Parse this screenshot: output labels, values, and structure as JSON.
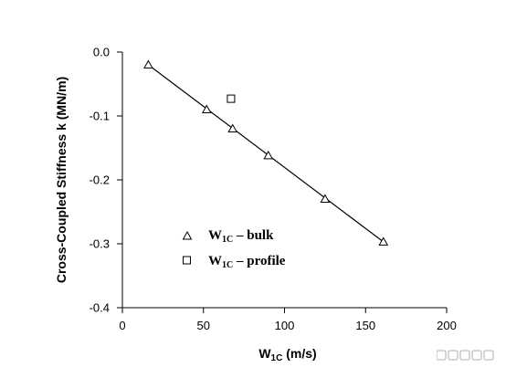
{
  "chart_data": {
    "type": "scatter",
    "xlabel_main": "W",
    "xlabel_sub": "1C",
    "xlabel_unit": " (m/s)",
    "ylabel": "Cross-Coupled Stiffness k  (MN/m)",
    "xlim": [
      0,
      200
    ],
    "ylim": [
      -0.4,
      0.0
    ],
    "x_ticks": [
      "0",
      "50",
      "100",
      "150",
      "200"
    ],
    "y_ticks": [
      "0.0",
      "-0.1",
      "-0.2",
      "-0.3",
      "-0.4"
    ],
    "x_tick_values": [
      0,
      50,
      100,
      150,
      200
    ],
    "y_tick_values": [
      0.0,
      -0.1,
      -0.2,
      -0.3,
      -0.4
    ],
    "grid": false,
    "legend_position": "center-left",
    "series": [
      {
        "name_main": "W",
        "name_sub": "1C",
        "name_rest": " – bulk",
        "marker": "triangle",
        "x": [
          16,
          52,
          68,
          90,
          125,
          161
        ],
        "y": [
          -0.02,
          -0.09,
          -0.12,
          -0.162,
          -0.23,
          -0.297
        ],
        "fit_line": {
          "x": [
            16,
            161
          ],
          "y": [
            -0.02,
            -0.297
          ]
        }
      },
      {
        "name_main": "W",
        "name_sub": "1C",
        "name_rest": " – profile",
        "marker": "square",
        "x": [
          67
        ],
        "y": [
          -0.073
        ]
      }
    ]
  },
  "colors": {
    "axis": "#000000",
    "marker_stroke": "#000000",
    "background": "#ffffff"
  },
  "watermark": "Chart"
}
